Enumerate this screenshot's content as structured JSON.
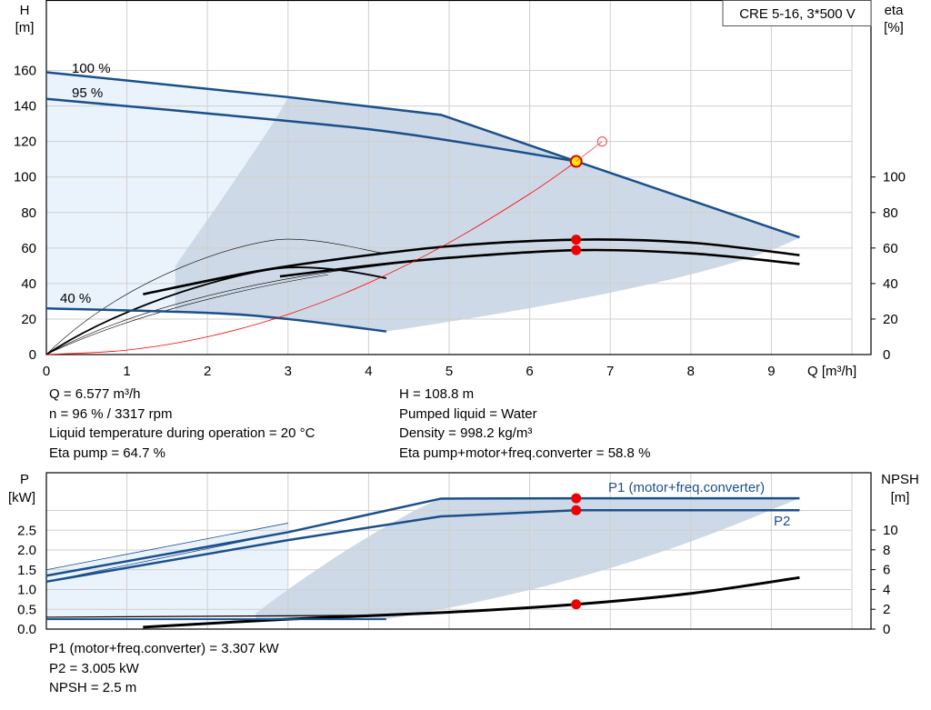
{
  "chart_data": [
    {
      "type": "line",
      "title": "CRE 5-16, 3*500 V",
      "xlabel": "Q [m³/h]",
      "ylabel_left": [
        "H",
        "[m]"
      ],
      "ylabel_right": [
        "eta",
        "[%]"
      ],
      "xlim": [
        0,
        10
      ],
      "ylim": [
        0,
        180
      ],
      "x_ticks": [
        "0",
        "1",
        "2",
        "3",
        "4",
        "5",
        "6",
        "7",
        "8",
        "9"
      ],
      "y_ticks_left": [
        "0",
        "20",
        "40",
        "60",
        "80",
        "100",
        "120",
        "140",
        "160"
      ],
      "y_ticks_right": [
        "0",
        "20",
        "40",
        "60",
        "80",
        "100"
      ],
      "grid": true,
      "speed_labels": [
        "100 %",
        "95 %",
        "40 %"
      ],
      "series": [
        {
          "name": "100 %",
          "color": "#1b4f8c",
          "x": [
            0,
            3,
            4.9,
            6.58,
            9.35
          ],
          "y": [
            159,
            145,
            135,
            108.8,
            66
          ]
        },
        {
          "name": "95 %",
          "color": "#1b4f8c",
          "x": [
            0,
            2.9,
            4.5,
            6.58
          ],
          "y": [
            144,
            132,
            124,
            108.8
          ]
        },
        {
          "name": "40 %",
          "color": "#1b4f8c",
          "x": [
            0,
            2,
            3,
            4.22
          ],
          "y": [
            26,
            23.5,
            20,
            13
          ]
        },
        {
          "name": "eta pump",
          "color": "#000000",
          "x": [
            1.2,
            2.5,
            3.5,
            5,
            6.58,
            8,
            9.35
          ],
          "y": [
            34,
            46,
            53,
            61,
            64.7,
            63,
            56
          ]
        },
        {
          "name": "eta total",
          "color": "#000000",
          "x": [
            2.9,
            4,
            5,
            6.58,
            8,
            9.35
          ],
          "y": [
            44,
            50,
            54.5,
            58.8,
            57,
            51
          ]
        },
        {
          "name": "system curve",
          "color": "#ff0000",
          "x": [
            0,
            1,
            2,
            3,
            4,
            5,
            6,
            6.58
          ],
          "y": [
            0,
            2.5,
            10,
            22.6,
            40.3,
            63,
            90.5,
            108.8
          ]
        }
      ],
      "operating_point": {
        "q": 6.577,
        "h": 108.8,
        "eta_pump": 64.7,
        "eta_total": 58.8
      }
    },
    {
      "type": "line",
      "xlim": [
        0,
        10
      ],
      "ylim_p": [
        0,
        3.5
      ],
      "ylim_npsh": [
        0,
        16
      ],
      "ylabel_left": [
        "P",
        "[kW]"
      ],
      "ylabel_right": [
        "NPSH",
        "[m]"
      ],
      "y_ticks_left": [
        "0.0",
        "0.5",
        "1.0",
        "1.5",
        "2.0",
        "2.5"
      ],
      "y_ticks_right": [
        "0",
        "2",
        "4",
        "6",
        "8",
        "10"
      ],
      "grid": true,
      "series": [
        {
          "name": "P1 (motor+freq.converter)",
          "color": "#1b4f8c",
          "x": [
            0,
            3,
            4.9,
            6.58,
            9.35
          ],
          "y": [
            1.35,
            2.45,
            3.3,
            3.307,
            3.307
          ]
        },
        {
          "name": "P2",
          "color": "#1b4f8c",
          "x": [
            0,
            3,
            4.9,
            6.58,
            9.35
          ],
          "y": [
            1.2,
            2.25,
            2.85,
            3.005,
            3.005
          ]
        },
        {
          "name": "NPSH",
          "color": "#000000",
          "axis": "right",
          "x": [
            1.2,
            3,
            5,
            6.58,
            8,
            9.35
          ],
          "y": [
            0.2,
            1,
            1.7,
            2.5,
            3.6,
            5.2
          ]
        }
      ],
      "operating_point": {
        "p1": 3.307,
        "p2": 3.005,
        "npsh": 2.5
      }
    }
  ],
  "info_top_left": [
    "Q = 6.577 m³/h",
    "n = 96 % / 3317 rpm",
    "Liquid temperature during operation = 20 °C",
    "Eta pump = 64.7 %"
  ],
  "info_top_right": [
    "H = 108.8 m",
    "Pumped liquid = Water",
    "Density = 998.2 kg/m³",
    "Eta pump+motor+freq.converter = 58.8 %"
  ],
  "info_bottom": [
    "P1 (motor+freq.converter) = 3.307 kW",
    "P2 = 3.005 kW",
    "NPSH = 2.5 m"
  ]
}
